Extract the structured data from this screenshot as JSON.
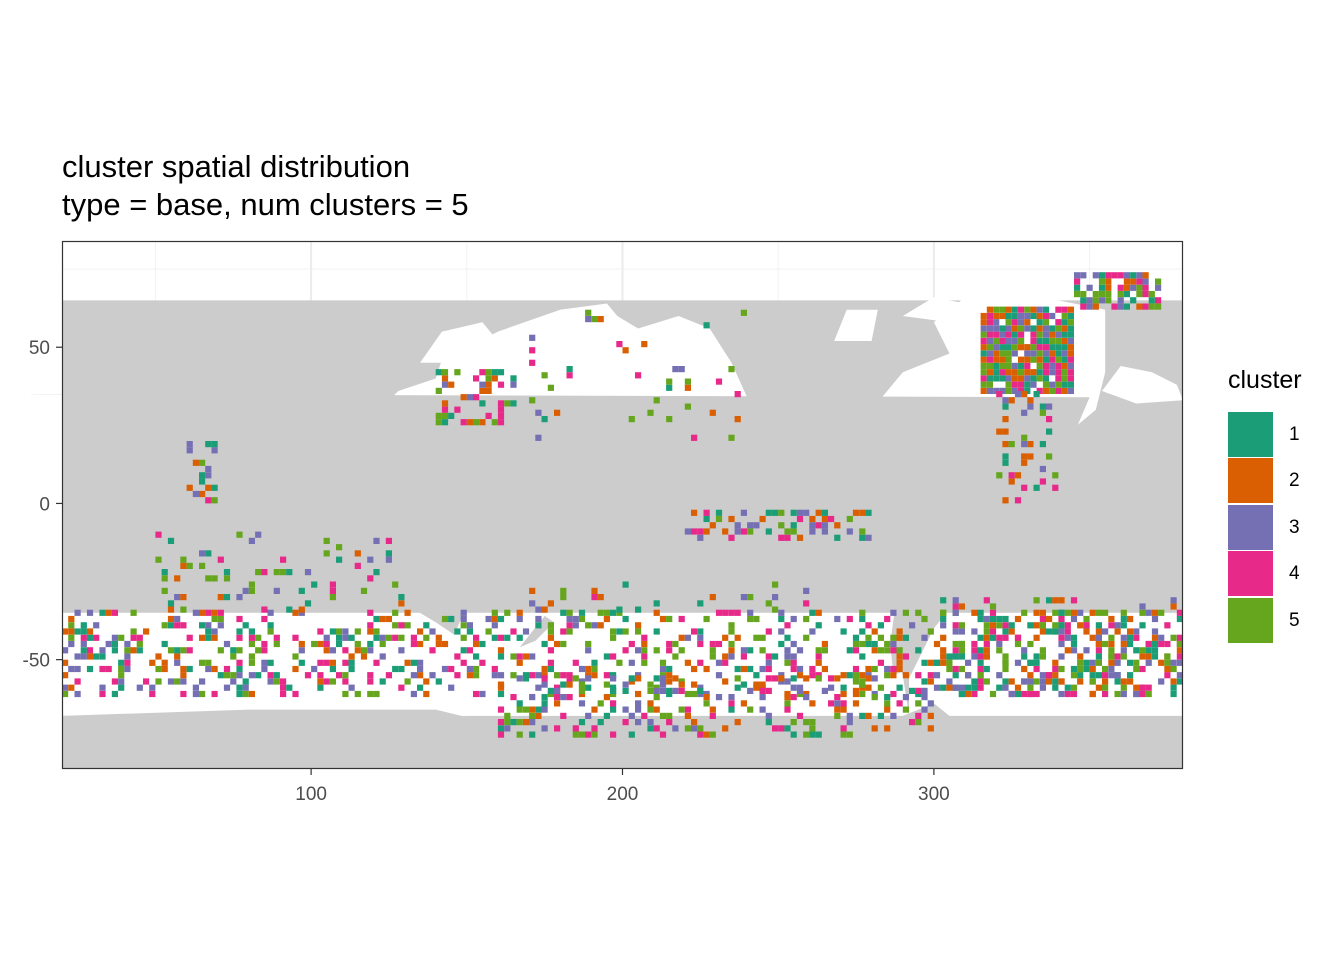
{
  "title_line1": "cluster spatial distribution",
  "title_line2": "type = base, num clusters = 5",
  "chart_data": {
    "type": "heatmap",
    "x_ticks": [
      100,
      200,
      300
    ],
    "y_ticks": [
      50,
      0,
      -50
    ],
    "xlim": [
      20,
      380
    ],
    "ylim": [
      -85,
      84
    ],
    "grid": true,
    "legend_position": "right",
    "legend": {
      "title": "cluster",
      "entries": [
        {
          "label": "1",
          "color": "#1b9e77"
        },
        {
          "label": "2",
          "color": "#d95f02"
        },
        {
          "label": "3",
          "color": "#7570b3"
        },
        {
          "label": "4",
          "color": "#e7298a"
        },
        {
          "label": "5",
          "color": "#66a61e"
        }
      ]
    },
    "land_color": "#cccccc",
    "ocean_color": "#ffffff",
    "regions": [
      {
        "lon": [
          315,
          345
        ],
        "lat": [
          35,
          63
        ],
        "density": 0.9
      },
      {
        "lon": [
          345,
          372
        ],
        "lat": [
          62,
          74
        ],
        "density": 0.6
      },
      {
        "lon": [
          140,
          165
        ],
        "lat": [
          25,
          42
        ],
        "density": 0.45
      },
      {
        "lon": [
          20,
          380
        ],
        "lat": [
          -62,
          -35
        ],
        "density": 0.3
      },
      {
        "lon": [
          160,
          300
        ],
        "lat": [
          -75,
          -55
        ],
        "density": 0.28
      },
      {
        "lon": [
          220,
          280
        ],
        "lat": [
          -12,
          -3
        ],
        "density": 0.35
      },
      {
        "lon": [
          300,
          380
        ],
        "lat": [
          -62,
          -30
        ],
        "density": 0.25
      },
      {
        "lon": [
          50,
          130
        ],
        "lat": [
          -35,
          -10
        ],
        "density": 0.12
      },
      {
        "lon": [
          320,
          340
        ],
        "lat": [
          0,
          35
        ],
        "density": 0.2
      },
      {
        "lon": [
          170,
          260
        ],
        "lat": [
          -35,
          -25
        ],
        "density": 0.12
      },
      {
        "lon": [
          170,
          240
        ],
        "lat": [
          20,
          62
        ],
        "density": 0.06
      },
      {
        "lon": [
          60,
          70
        ],
        "lat": [
          0,
          20
        ],
        "density": 0.35
      }
    ]
  }
}
